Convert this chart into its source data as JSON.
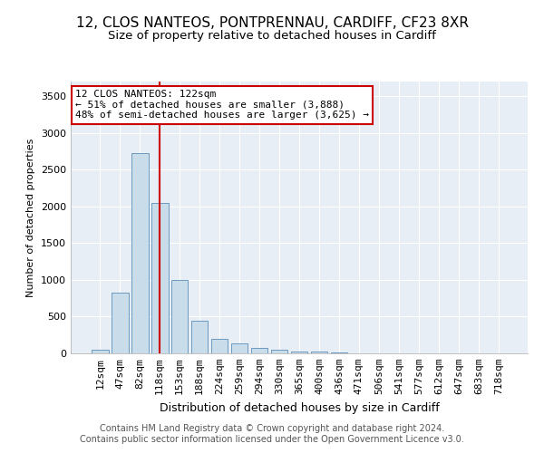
{
  "title1": "12, CLOS NANTEOS, PONTPRENNAU, CARDIFF, CF23 8XR",
  "title2": "Size of property relative to detached houses in Cardiff",
  "xlabel": "Distribution of detached houses by size in Cardiff",
  "ylabel": "Number of detached properties",
  "categories": [
    "12sqm",
    "47sqm",
    "82sqm",
    "118sqm",
    "153sqm",
    "188sqm",
    "224sqm",
    "259sqm",
    "294sqm",
    "330sqm",
    "365sqm",
    "400sqm",
    "436sqm",
    "471sqm",
    "506sqm",
    "541sqm",
    "577sqm",
    "612sqm",
    "647sqm",
    "683sqm",
    "718sqm"
  ],
  "values": [
    50,
    830,
    2720,
    2050,
    1000,
    450,
    200,
    130,
    80,
    50,
    30,
    20,
    10,
    5,
    5,
    5,
    3,
    2,
    2,
    1,
    1
  ],
  "bar_color": "#c9dcea",
  "bar_edge_color": "#5b8db8",
  "vline_index": 3,
  "vline_color": "#cc0000",
  "annotation_text": "12 CLOS NANTEOS: 122sqm\n← 51% of detached houses are smaller (3,888)\n48% of semi-detached houses are larger (3,625) →",
  "annotation_box_facecolor": "#ffffff",
  "annotation_box_edgecolor": "#cc0000",
  "ylim": [
    0,
    3700
  ],
  "yticks": [
    0,
    500,
    1000,
    1500,
    2000,
    2500,
    3000,
    3500
  ],
  "bg_color": "#ffffff",
  "plot_bg_color": "#e8eef5",
  "footer": "Contains HM Land Registry data © Crown copyright and database right 2024.\nContains public sector information licensed under the Open Government Licence v3.0.",
  "title1_fontsize": 11,
  "title2_fontsize": 9.5,
  "xlabel_fontsize": 9,
  "ylabel_fontsize": 8,
  "tick_fontsize": 8,
  "annotation_fontsize": 8,
  "footer_fontsize": 7
}
